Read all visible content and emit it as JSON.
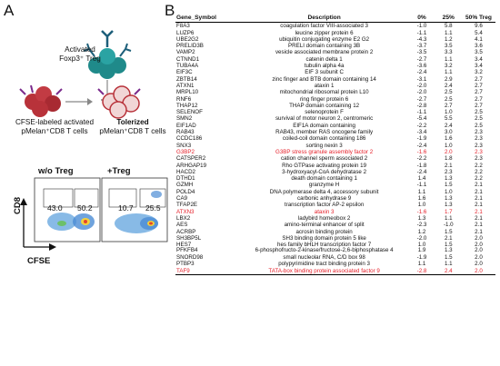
{
  "panel_a": {
    "letter": "A",
    "activated_treg": "Activated",
    "activated_treg_line2": "Foxp3⁺ Treg",
    "cfse_label_line1": "CFSE-labeled activated",
    "cfse_label_line2": "pMelan⁺CD8 T cells",
    "tolerized_line1": "Tolerized",
    "tolerized_line2": "pMelan⁺CD8 T cells",
    "facs_wo_title": "w/o Treg",
    "facs_plus_title": "+Treg",
    "wo_left_pct": "43.0",
    "wo_right_pct": "50.2",
    "plus_left_pct": "10.7",
    "plus_right_pct": "25.5",
    "y_axis": "CD8",
    "x_axis": "CFSE"
  },
  "panel_b": {
    "letter": "B",
    "headers": [
      "Gene_Symbol",
      "Description",
      "0%",
      "25%",
      "50% Treg"
    ],
    "highlight_color": "#e5202a",
    "rows": [
      {
        "sym": "F8A3",
        "desc": "coagulation factor VIII-associated 3",
        "v0": "-1.0",
        "v25": "5.8",
        "v50": "9.6",
        "hl": false
      },
      {
        "sym": "LUZP6",
        "desc": "leucine zipper protein 6",
        "v0": "-1.1",
        "v25": "1.1",
        "v50": "5.4",
        "hl": false
      },
      {
        "sym": "UBE2G2",
        "desc": "ubiquitin conjugating enzyme E2 G2",
        "v0": "-4.3",
        "v25": "1.2",
        "v50": "4.1",
        "hl": false
      },
      {
        "sym": "PRELID3B",
        "desc": "PRELI domain containing 3B",
        "v0": "-3.7",
        "v25": "3.5",
        "v50": "3.6",
        "hl": false
      },
      {
        "sym": "VAMP2",
        "desc": "vesicle associated membrane protein 2",
        "v0": "-3.5",
        "v25": "3.3",
        "v50": "3.5",
        "hl": false
      },
      {
        "sym": "CTNND1",
        "desc": "catenin delta 1",
        "v0": "-2.7",
        "v25": "1.1",
        "v50": "3.4",
        "hl": false
      },
      {
        "sym": "TUBA4A",
        "desc": "tubulin alpha 4a",
        "v0": "-3.6",
        "v25": "3.2",
        "v50": "3.4",
        "hl": false
      },
      {
        "sym": "EIF3C",
        "desc": "EIF 3 subunit C",
        "v0": "-2.4",
        "v25": "1.1",
        "v50": "3.2",
        "hl": false
      },
      {
        "sym": "ZBTB14",
        "desc": "zinc finger and BTB domain containing 14",
        "v0": "-3.1",
        "v25": "2.9",
        "v50": "2.7",
        "hl": false
      },
      {
        "sym": "ATXN1",
        "desc": "ataxin 1",
        "v0": "-2.0",
        "v25": "2.4",
        "v50": "2.7",
        "hl": false
      },
      {
        "sym": "MRPL10",
        "desc": "mitochondrial ribosomal protein L10",
        "v0": "-2.0",
        "v25": "2.5",
        "v50": "2.7",
        "hl": false
      },
      {
        "sym": "RNF6",
        "desc": "ring finger protein 6",
        "v0": "-2.7",
        "v25": "2.5",
        "v50": "2.7",
        "hl": false
      },
      {
        "sym": "THAP12",
        "desc": "THAP domain containing 12",
        "v0": "-2.8",
        "v25": "2.7",
        "v50": "2.7",
        "hl": false
      },
      {
        "sym": "SELENOF",
        "desc": "selenoprotein F",
        "v0": "-1.1",
        "v25": "1.0",
        "v50": "2.5",
        "hl": false
      },
      {
        "sym": "SMN2",
        "desc": "survival of motor neuron 2, centromeric",
        "v0": "-5.4",
        "v25": "5.5",
        "v50": "2.5",
        "hl": false
      },
      {
        "sym": "EIF1AD",
        "desc": "EIF1A domain containing",
        "v0": "-2.2",
        "v25": "2.4",
        "v50": "2.5",
        "hl": false
      },
      {
        "sym": "RAB43",
        "desc": "RAB43, member RAS oncogene family",
        "v0": "-3.4",
        "v25": "3.0",
        "v50": "2.3",
        "hl": false
      },
      {
        "sym": "CCDC186",
        "desc": "coiled-coil domain containing 186",
        "v0": "-1.9",
        "v25": "1.6",
        "v50": "2.3",
        "hl": false
      },
      {
        "sym": "SNX3",
        "desc": "sorting nexin 3",
        "v0": "-2.4",
        "v25": "1.0",
        "v50": "2.3",
        "hl": false
      },
      {
        "sym": "G3BP2",
        "desc": "G3BP stress granule assembly factor 2",
        "v0": "-1.6",
        "v25": "2.0",
        "v50": "2.3",
        "hl": true
      },
      {
        "sym": "CATSPER2",
        "desc": "cation channel sperm associated 2",
        "v0": "-2.2",
        "v25": "1.8",
        "v50": "2.3",
        "hl": false
      },
      {
        "sym": "ARHGAP19",
        "desc": "Rho GTPase activating protein 19",
        "v0": "-1.8",
        "v25": "2.1",
        "v50": "2.2",
        "hl": false
      },
      {
        "sym": "HACD2",
        "desc": "3-hydroxyacyl-CoA dehydratase 2",
        "v0": "-2.4",
        "v25": "2.3",
        "v50": "2.2",
        "hl": false
      },
      {
        "sym": "DTHD1",
        "desc": "death domain containing 1",
        "v0": "1.4",
        "v25": "1.3",
        "v50": "2.2",
        "hl": false
      },
      {
        "sym": "GZMH",
        "desc": "granzyme H",
        "v0": "-1.1",
        "v25": "1.5",
        "v50": "2.1",
        "hl": false
      },
      {
        "sym": "POLD4",
        "desc": "DNA polymerase delta 4, accessory subunit",
        "v0": "1.1",
        "v25": "1.0",
        "v50": "2.1",
        "hl": false
      },
      {
        "sym": "CA9",
        "desc": "carbonic anhydrase 9",
        "v0": "1.6",
        "v25": "1.3",
        "v50": "2.1",
        "hl": false
      },
      {
        "sym": "TFAP2E",
        "desc": "transcription factor AP-2 epsilon",
        "v0": "1.0",
        "v25": "1.3",
        "v50": "2.1",
        "hl": false
      },
      {
        "sym": "ATXN3",
        "desc": "ataxin 3",
        "v0": "-1.6",
        "v25": "1.7",
        "v50": "2.1",
        "hl": true
      },
      {
        "sym": "LBX2",
        "desc": "ladybird homeobox 2",
        "v0": "1.3",
        "v25": "1.1",
        "v50": "2.1",
        "hl": false
      },
      {
        "sym": "AES",
        "desc": "amino-terminal enhancer of split",
        "v0": "-2.3",
        "v25": "-1.0",
        "v50": "2.1",
        "hl": false
      },
      {
        "sym": "ACRBP",
        "desc": "acrosin binding protein",
        "v0": "1.2",
        "v25": "1.5",
        "v50": "2.1",
        "hl": false
      },
      {
        "sym": "SH3BP5L",
        "desc": "SH3 binding domain protein 5 like",
        "v0": "-2.0",
        "v25": "2.1",
        "v50": "2.0",
        "hl": false
      },
      {
        "sym": "HES7",
        "desc": "hes family bHLH transcription factor 7",
        "v0": "1.0",
        "v25": "1.5",
        "v50": "2.0",
        "hl": false
      },
      {
        "sym": "PFKFB4",
        "desc": "6-phosphofructo-2-kinase/fructose-2,6-biphosphatase 4",
        "v0": "1.9",
        "v25": "1.3",
        "v50": "2.0",
        "hl": false,
        "twoline": true
      },
      {
        "sym": "SNORD98",
        "desc": "small nucleolar RNA, C/D box 98",
        "v0": "-1.9",
        "v25": "1.5",
        "v50": "2.0",
        "hl": false
      },
      {
        "sym": "PTBP3",
        "desc": "polypyrimidine tract binding protein 3",
        "v0": "1.1",
        "v25": "1.1",
        "v50": "2.0",
        "hl": false
      },
      {
        "sym": "TAF9",
        "desc": "TATA-box binding protein associated factor 9",
        "v0": "-2.8",
        "v25": "2.4",
        "v50": "2.0",
        "hl": true
      }
    ]
  }
}
